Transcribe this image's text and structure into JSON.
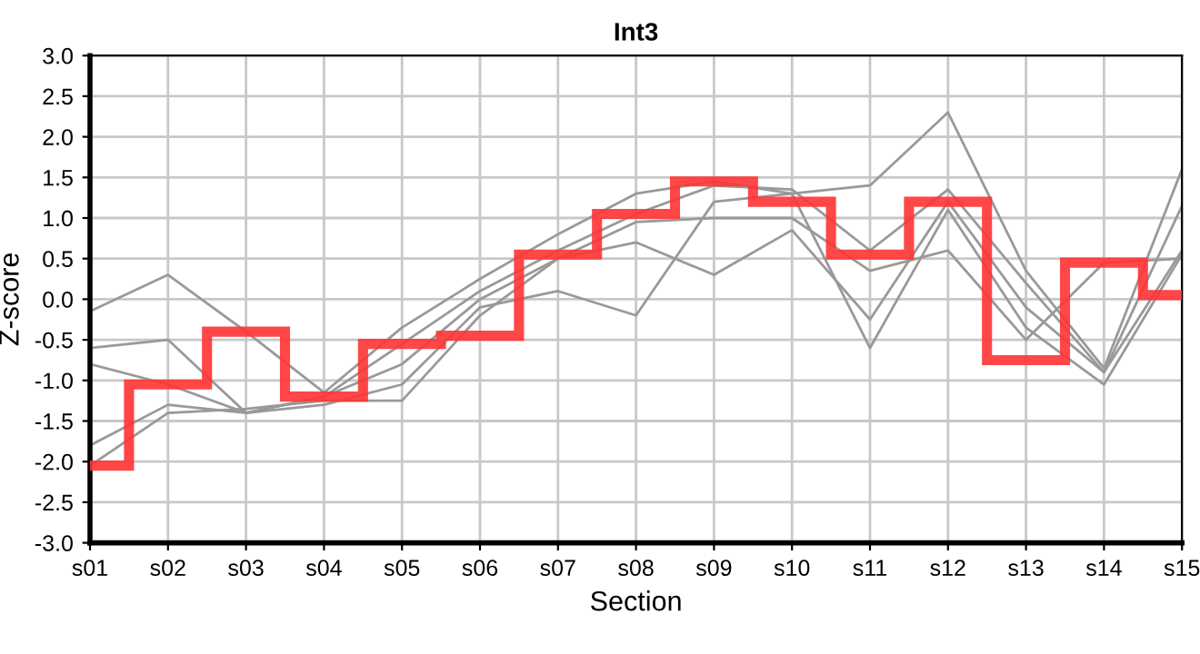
{
  "chart_data": {
    "type": "line",
    "title": "Int3",
    "xlabel": "Section",
    "ylabel": "Z-score",
    "categories": [
      "s01",
      "s02",
      "s03",
      "s04",
      "s05",
      "s06",
      "s07",
      "s08",
      "s09",
      "s10",
      "s11",
      "s12",
      "s13",
      "s14",
      "s15"
    ],
    "series": [
      {
        "color": "#999999",
        "values": [
          -0.15,
          0.3,
          -0.4,
          -1.15,
          -0.35,
          0.25,
          0.8,
          1.3,
          1.45,
          1.3,
          1.4,
          2.3,
          0.35,
          -0.85,
          1.6
        ]
      },
      {
        "color": "#999999",
        "values": [
          -0.6,
          -0.5,
          -1.4,
          -1.2,
          -0.55,
          0.1,
          0.6,
          1.05,
          1.4,
          1.35,
          0.6,
          1.35,
          0.2,
          -0.9,
          1.15
        ]
      },
      {
        "color": "#999999",
        "values": [
          -0.8,
          -1.05,
          -1.4,
          -1.2,
          -0.8,
          0.0,
          0.5,
          0.7,
          0.3,
          0.85,
          -0.25,
          1.2,
          -0.1,
          -0.9,
          0.6
        ]
      },
      {
        "color": "#999999",
        "values": [
          -1.8,
          -1.3,
          -1.4,
          -1.3,
          -1.05,
          -0.1,
          0.1,
          -0.2,
          1.2,
          1.3,
          -0.6,
          1.1,
          -0.35,
          -1.05,
          0.55
        ]
      },
      {
        "color": "#999999",
        "values": [
          -2.05,
          -1.4,
          -1.35,
          -1.25,
          -1.25,
          -0.2,
          0.5,
          0.95,
          1.0,
          1.0,
          0.35,
          0.6,
          -0.5,
          0.45,
          0.5
        ]
      },
      {
        "type": "step",
        "color": "#ff3333",
        "values": [
          -2.05,
          -1.05,
          -0.4,
          -1.2,
          -0.55,
          -0.45,
          0.55,
          1.05,
          1.45,
          1.2,
          0.55,
          1.2,
          -0.75,
          0.45,
          0.05
        ]
      }
    ],
    "ylim": [
      -3.0,
      3.0
    ],
    "yticks": [
      {
        "value": -3,
        "label": "-3.0"
      },
      {
        "value": -2.5,
        "label": "-2.5"
      },
      {
        "value": -2,
        "label": "-2.0"
      },
      {
        "value": -1.5,
        "label": "-1.5"
      },
      {
        "value": -1,
        "label": "-1.0"
      },
      {
        "value": -0.5,
        "label": "-0.5"
      },
      {
        "value": 0,
        "label": "0.0"
      },
      {
        "value": 0.5,
        "label": "0.5"
      },
      {
        "value": 1,
        "label": "1.0"
      },
      {
        "value": 1.5,
        "label": "1.5"
      },
      {
        "value": 2,
        "label": "2.0"
      },
      {
        "value": 2.5,
        "label": "2.5"
      },
      {
        "value": 3,
        "label": "3.0"
      }
    ],
    "grid": true
  }
}
